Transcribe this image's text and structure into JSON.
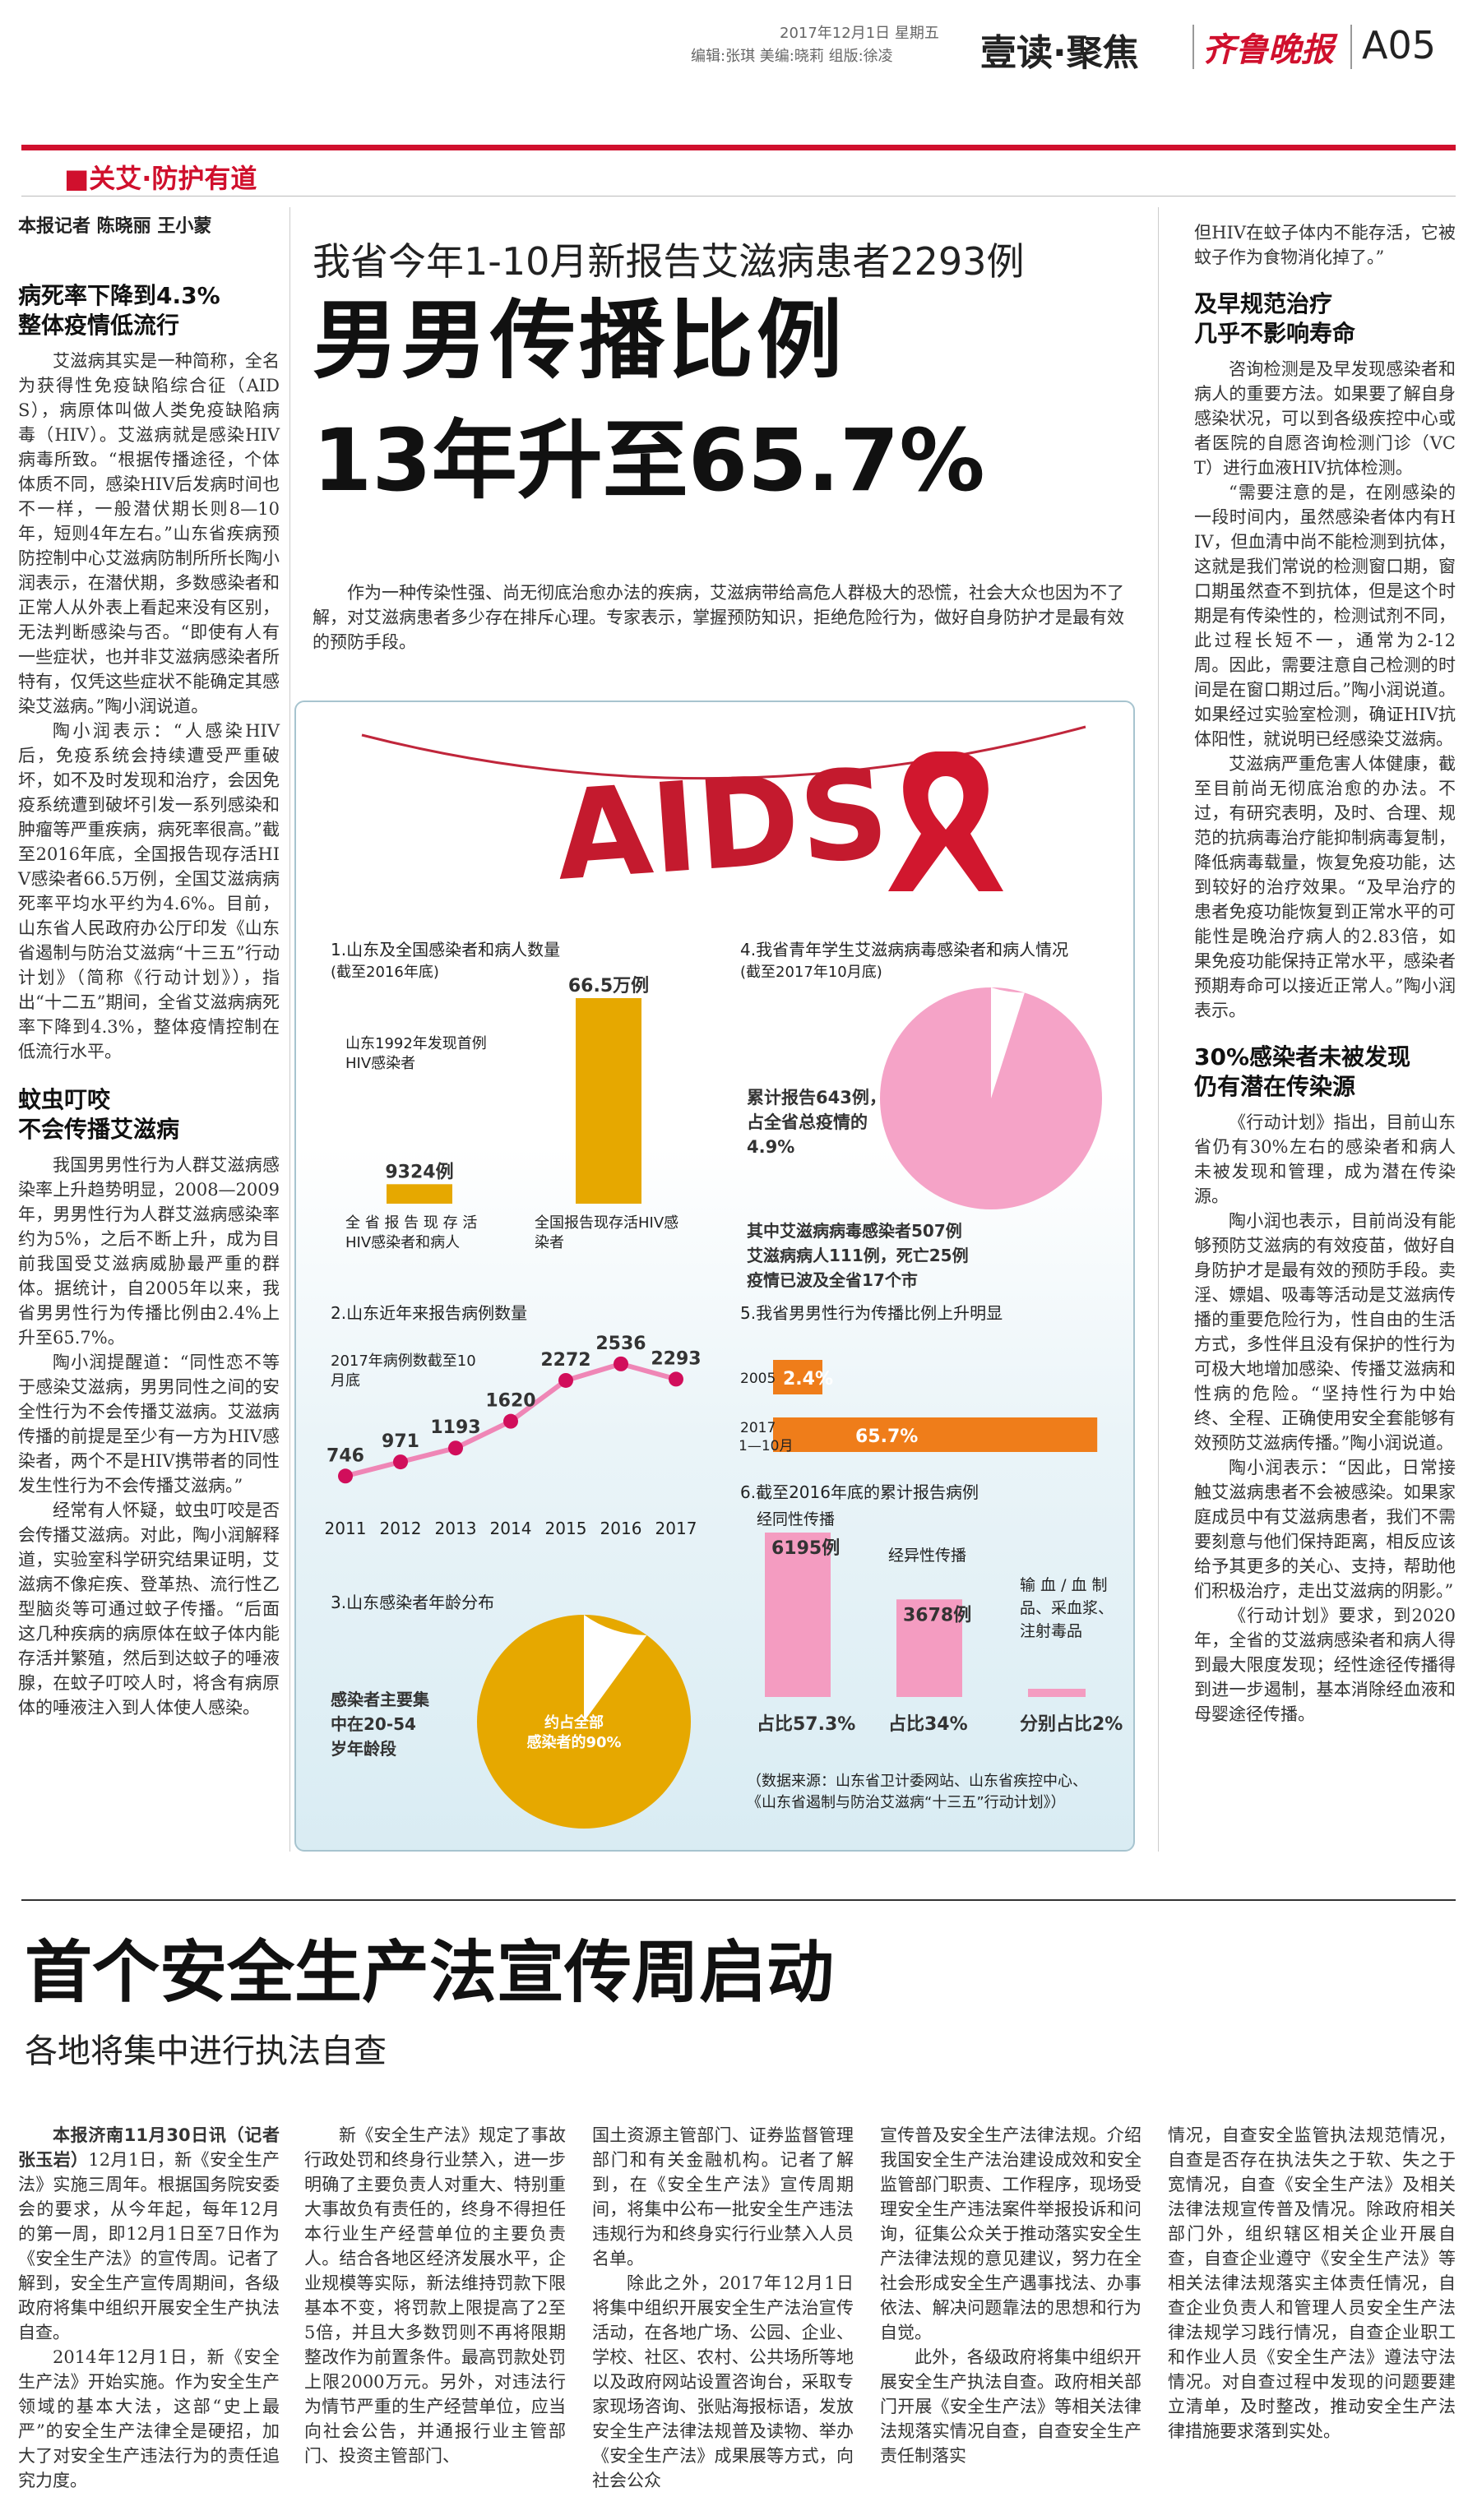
{
  "masthead": {
    "date": "2017年12月1日 星期五",
    "editors": "编辑:张琪 美编:晓莉 组版:徐凌",
    "section": "壹读·聚焦",
    "paper": "齐鲁晚报",
    "page": "A05"
  },
  "column_tag": "■关艾·防护有道",
  "lead": {
    "byline": "本报记者 陈晓丽 王小蒙",
    "kicker": "我省今年1-10月新报告艾滋病患者2293例",
    "title1": "男男传播比例",
    "title2": "13年升至65.7%",
    "intro": "作为一种传染性强、尚无彻底治愈办法的疾病，艾滋病带给高危人群极大的恐慌，社会大众也因为不了解，对艾滋病患者多少存在排斥心理。专家表示，掌握预防知识，拒绝危险行为，做好自身防护才是最有效的预防手段。",
    "sub1": "病死率下降到4.3%\n整体疫情低流行",
    "p1": "艾滋病其实是一种简称，全名为获得性免疫缺陷综合征（AIDS），病原体叫做人类免疫缺陷病毒（HIV）。艾滋病就是感染HIV病毒所致。“根据传播途径，个体体质不同，感染HIV后发病时间也不一样，一般潜伏期长则8—10年，短则4年左右。”山东省疾病预防控制中心艾滋病防制所所长陶小润表示，在潜伏期，多数感染者和正常人从外表上看起来没有区别，无法判断感染与否。“即使有人有一些症状，也并非艾滋病感染者所特有，仅凭这些症状不能确定其感染艾滋病。”陶小润说道。",
    "p2": "陶小润表示：“人感染HIV后，免疫系统会持续遭受严重破坏，如不及时发现和治疗，会因免疫系统遭到破坏引发一系列感染和肿瘤等严重疾病，病死率很高。”截至2016年底，全国报告现存活HIV感染者66.5万例，全国艾滋病病死率平均水平约为4.6%。目前，山东省人民政府办公厅印发《山东省遏制与防治艾滋病“十三五”行动计划》（简称《行动计划》），指出“十二五”期间，全省艾滋病病死率下降到4.3%，整体疫情控制在低流行水平。",
    "sub2": "蚊虫叮咬\n不会传播艾滋病",
    "p3": "我国男男性行为人群艾滋病感染率上升趋势明显，2008—2009年，男男性行为人群艾滋病感染率约为5%，之后不断上升，成为目前我国受艾滋病威胁最严重的群体。据统计，自2005年以来，我省男男性行为传播比例由2.4%上升至65.7%。",
    "p4": "陶小润提醒道：“同性恋不等于感染艾滋病，男男同性之间的安全性行为不会传播艾滋病。艾滋病传播的前提是至少有一方为HIV感染者，两个不是HIV携带者的同性发生性行为不会传播艾滋病。”",
    "p5": "经常有人怀疑，蚊虫叮咬是否会传播艾滋病。对此，陶小润解释道，实验室科学研究结果证明，艾滋病不像疟疾、登革热、流行性乙型脑炎等可通过蚊子传播。“后面这几种疾病的病原体在蚊子体内能存活并繁殖，然后到达蚊子的唾液腺，在蚊子叮咬人时，将含有病原体的唾液注入到人体使人感染。",
    "p6": "但HIV在蚊子体内不能存活，它被蚊子作为食物消化掉了。”",
    "sub3": "及早规范治疗\n几乎不影响寿命",
    "p7": "咨询检测是及早发现感染者和病人的重要方法。如果要了解自身感染状况，可以到各级疾控中心或者医院的自愿咨询检测门诊（VCT）进行血液HIV抗体检测。",
    "p8": "“需要注意的是，在刚感染的一段时间内，虽然感染者体内有HIV，但血清中尚不能检测到抗体，这就是我们常说的检测窗口期，窗口期虽然查不到抗体，但是这个时期是有传染性的，检测试剂不同，此过程长短不一，通常为2-12周。因此，需要注意自己检测的时间是在窗口期过后。”陶小润说道。如果经过实验室检测，确证HIV抗体阳性，就说明已经感染艾滋病。",
    "p9": "艾滋病严重危害人体健康，截至目前尚无彻底治愈的办法。不过，有研究表明，及时、合理、规范的抗病毒治疗能抑制病毒复制，降低病毒载量，恢复免疫功能，达到较好的治疗效果。“及早治疗的患者免疫功能恢复到正常水平的可能性是晚治疗病人的2.83倍，如果免疫功能保持正常水平，感染者预期寿命可以接近正常人。”陶小润表示。",
    "sub4": "30%感染者未被发现\n仍有潜在传染源",
    "p10": "《行动计划》指出，目前山东省仍有30%左右的感染者和病人未被发现和管理，成为潜在传染源。",
    "p11": "陶小润也表示，目前尚没有能够预防艾滋病的有效疫苗，做好自身防护才是最有效的预防手段。卖淫、嫖娼、吸毒等活动是艾滋病传播的重要危险行为，性自由的生活方式，多性伴且没有保护的性行为可极大地增加感染、传播艾滋病和性病的危险。“坚持性行为中始终、全程、正确使用安全套能够有效预防艾滋病传播。”陶小润说道。",
    "p12": "陶小润表示：“因此，日常接触艾滋病患者不会被感染。如果家庭成员中有艾滋病患者，我们不需要刻意与他们保持距离，相反应该给予其更多的关心、支持，帮助他们积极治疗，走出艾滋病的阴影。”",
    "p13": "《行动计划》要求，到2020年，全省的艾滋病感染者和病人得到最大限度发现；经性途径传播得到进一步遏制，基本消除经血液和母婴途径传播。"
  },
  "info": {
    "logo": "AIDS",
    "c1": {
      "title": "1.山东及全国感染者和病人数量",
      "sub": "(截至2016年底)",
      "note": "山东1992年发现首例\nHIV感染者",
      "v1": "9324例",
      "v2": "66.5万例",
      "l1": "全 省 报 告 现 存 活\nHIV感染者和病人",
      "l2": "全国报告现存活HIV感\n染者"
    },
    "c2": {
      "title": "2.山东近年来报告病例数量",
      "note": "2017年病例数截至10\n月底"
    },
    "c3": {
      "title": "3.山东感染者年龄分布",
      "note": "感染者主要集\n中在20-54\n岁年龄段",
      "pie": "约占全部\n感染者的90%"
    },
    "c4": {
      "title": "4.我省青年学生艾滋病病毒感染者和病人情况",
      "sub": "(截至2017年10月底)",
      "note": "累计报告643例，\n占全省总疫情的\n4.9%",
      "note2": "其中艾滋病病毒感染者507例\n艾滋病病人111例，死亡25例\n疫情已波及全省17个市"
    },
    "c5": {
      "title": "5.我省男男性行为传播比例上升明显"
    },
    "c6": {
      "title": "6.截至2016年底的累计报告病例",
      "source": "（数据来源：山东省卫计委网站、山东省疾控中心、\n《山东省遏制与防治艾滋病“十三五”行动计划》）"
    }
  },
  "chart_data": [
    {
      "type": "bar",
      "title": "1.山东及全国感染者和病人数量",
      "categories": [
        "全省报告现存活HIV感染者和病人",
        "全国报告现存活HIV感染者"
      ],
      "values": [
        9324,
        665000
      ],
      "labels": [
        "9324例",
        "66.5万例"
      ],
      "color": "#e6a800"
    },
    {
      "type": "line",
      "title": "2.山东近年来报告病例数量",
      "x": [
        "2011",
        "2012",
        "2013",
        "2014",
        "2015",
        "2016",
        "2017"
      ],
      "values": [
        746,
        971,
        1193,
        1620,
        2272,
        2536,
        2293
      ],
      "color": "#ef86b6"
    },
    {
      "type": "pie",
      "title": "3.山东感染者年龄分布",
      "slices": [
        {
          "label": "20-54岁",
          "value": 90
        },
        {
          "label": "其他",
          "value": 10
        }
      ],
      "color": "#e6a800"
    },
    {
      "type": "pie",
      "title": "4.我省青年学生艾滋病病毒感染者和病人情况",
      "slices": [
        {
          "label": "青年学生",
          "value": 4.9
        },
        {
          "label": "其他",
          "value": 95.1
        }
      ],
      "color": "#f5a3c7"
    },
    {
      "type": "bar",
      "title": "5.我省男男性行为传播比例上升明显",
      "categories": [
        "2005",
        "2017 1—10月"
      ],
      "values": [
        2.4,
        65.7
      ],
      "labels": [
        "2.4%",
        "65.7%"
      ],
      "color": "#ef7d1a"
    },
    {
      "type": "bar",
      "title": "6.截至2016年底的累计报告病例",
      "categories": [
        "经同性传播",
        "经异性传播",
        "输血/血制品、采血浆、注射毒品"
      ],
      "values": [
        6195,
        3678,
        2
      ],
      "labels": [
        "6195例",
        "3678例",
        ""
      ],
      "shares": [
        "占比57.3%",
        "占比34%",
        "分别占比2%"
      ],
      "color": "#f49cc1"
    }
  ],
  "second": {
    "title": "首个安全生产法宣传周启动",
    "subtitle": "各地将集中进行执法自查",
    "c1a": "本报济南11月30日讯（记者 张玉岩）",
    "c1": "12月1日，新《安全生产法》实施三周年。根据国务院安委会的要求，从今年起，每年12月的第一周，即12月1日至7日作为《安全生产法》的宣传周。记者了解到，安全生产宣传周期间，各级政府将集中组织开展安全生产执法自查。",
    "c1b": "2014年12月1日，新《安全生产法》开始实施。作为安全生产领域的基本大法，这部“史上最严”的安全生产法律全是硬招，加大了对安全生产违法行为的责任追究力度。",
    "c2": "新《安全生产法》规定了事故行政处罚和终身行业禁入，进一步明确了主要负责人对重大、特别重大事故负有责任的，终身不得担任本行业生产经营单位的主要负责人。结合各地区经济发展水平，企业规模等实际，新法维持罚款下限基本不变，将罚款上限提高了2至5倍，并且大多数罚则不再将限期整改作为前置条件。最高罚款处罚上限2000万元。另外，对违法行为情节严重的生产经营单位，应当向社会公告，并通报行业主管部门、投资主管部门、",
    "c3": "国土资源主管部门、证券监督管理部门和有关金融机构。记者了解到，在《安全生产法》宣传周期间，将集中公布一批安全生产违法违规行为和终身实行行业禁入人员名单。",
    "c3b": "除此之外，2017年12月1日将集中组织开展安全生产法治宣传活动，在各地广场、公园、企业、学校、社区、农村、公共场所等地以及政府网站设置咨询台，采取专家现场咨询、张贴海报标语，发放安全生产法律法规普及读物、举办《安全生产法》成果展等方式，向社会公众",
    "c4": "宣传普及安全生产法律法规。介绍我国安全生产法治建设成效和安全监管部门职责、工作程序，现场受理安全生产违法案件举报投诉和问询，征集公众关于推动落实安全生产法律法规的意见建议，努力在全社会形成安全生产遇事找法、办事依法、解决问题靠法的思想和行为自觉。",
    "c4b": "此外，各级政府将集中组织开展安全生产执法自查。政府相关部门开展《安全生产法》等相关法律法规落实情况自查，自查安全生产责任制落实",
    "c5": "情况，自查安全监管执法规范情况，自查是否存在执法失之于软、失之于宽情况，自查《安全生产法》及相关法律法规宣传普及情况。除政府相关部门外，组织辖区相关企业开展自查，自查企业遵守《安全生产法》等相关法律法规落实主体责任情况，自查企业负责人和管理人员安全生产法律法规学习践行情况，自查企业职工和作业人员《安全生产法》遵法守法情况。对自查过程中发现的问题要建立清单，及时整改，推动安全生产法律措施要求落到实处。"
  }
}
